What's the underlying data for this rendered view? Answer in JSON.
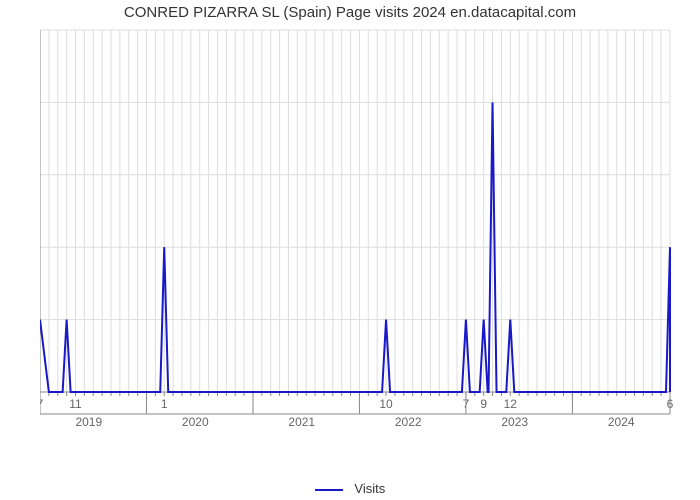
{
  "chart": {
    "type": "line",
    "title": "CONRED PIZARRA SL (Spain) Page visits 2024 en.datacapital.com",
    "title_fontsize": 15,
    "title_color": "#333333",
    "background_color": "#ffffff",
    "plot_background": "#ffffff",
    "line_color": "#1919c8",
    "line_width": 2,
    "grid_color": "#dddddd",
    "axis_color": "#888888",
    "tick_label_color": "#666666",
    "tick_fontsize": 12,
    "ylim": [
      0,
      5
    ],
    "ytick_step": 1,
    "yticks": [
      0,
      1,
      2,
      3,
      4,
      5
    ],
    "year_bands": [
      "2019",
      "2020",
      "2021",
      "2022",
      "2023",
      "2024"
    ],
    "year_band_width": 12,
    "minor_tick_labels": [
      {
        "i": 0,
        "label": "7"
      },
      {
        "i": 4,
        "label": "11"
      },
      {
        "i": 14,
        "label": "1"
      },
      {
        "i": 39,
        "label": "10"
      },
      {
        "i": 48,
        "label": "7"
      },
      {
        "i": 50,
        "label": "9"
      },
      {
        "i": 53,
        "label": "12"
      },
      {
        "i": 71,
        "label": "6"
      }
    ],
    "n_points": 72,
    "values": [
      1,
      0,
      0,
      1,
      0,
      0,
      0,
      0,
      0,
      0,
      0,
      0,
      0,
      0,
      2,
      0,
      0,
      0,
      0,
      0,
      0,
      0,
      0,
      0,
      0,
      0,
      0,
      0,
      0,
      0,
      0,
      0,
      0,
      0,
      0,
      0,
      0,
      0,
      0,
      1,
      0,
      0,
      0,
      0,
      0,
      0,
      0,
      0,
      1,
      0,
      1,
      4,
      0,
      1,
      0,
      0,
      0,
      0,
      0,
      0,
      0,
      0,
      0,
      0,
      0,
      0,
      0,
      0,
      0,
      0,
      0,
      2
    ],
    "legend_label": "Visits"
  }
}
